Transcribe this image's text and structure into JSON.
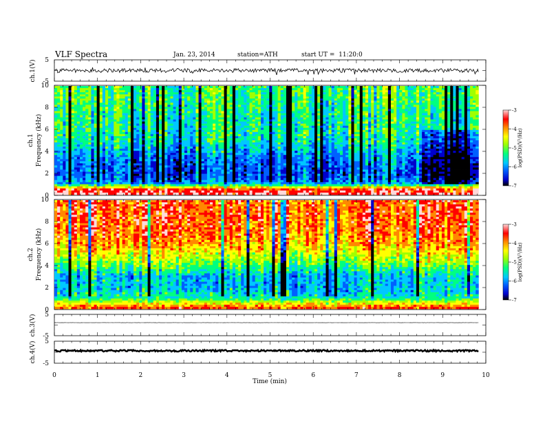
{
  "header": {
    "title": "VLF Spectra",
    "date": "Jan. 23, 2014",
    "station": "station=ATH",
    "start": "start UT =  11:20:0"
  },
  "colorbar": {
    "label": "log(PSD)(V²/Hz)",
    "ticks": [
      "-3",
      "-4",
      "-5",
      "-6",
      "-7"
    ],
    "range": [
      -7,
      -3
    ],
    "colors": [
      "#000000",
      "#0000cc",
      "#0060ff",
      "#00c8ff",
      "#00ff80",
      "#a0ff00",
      "#ffff00",
      "#ff8800",
      "#ff0000",
      "#ffd8d8"
    ]
  },
  "chart_data": [
    {
      "type": "line",
      "panel": "ch1-waveform",
      "ylabel": "ch.1(V)",
      "ylim": [
        -5,
        5
      ],
      "yticks": [
        "5",
        "-5"
      ],
      "xlim": [
        0,
        10
      ],
      "baseline": 0,
      "noise_amplitude": 1
    },
    {
      "type": "heatmap",
      "panel": "ch1-spectrogram",
      "title": "ch.1",
      "ylabel": "Frequency (kHz)",
      "ylim": [
        0,
        10
      ],
      "yticks": [
        "0",
        "2",
        "4",
        "6",
        "8",
        "10"
      ],
      "xlim": [
        0,
        9.83
      ],
      "zlim": [
        -7,
        -3
      ],
      "freq_kHz": [
        0,
        0.5,
        1,
        1.5,
        2,
        3,
        4,
        5,
        6,
        7,
        8,
        9,
        10
      ],
      "mean_log_psd": [
        -3.3,
        -3.6,
        -5.7,
        -6.0,
        -6.1,
        -6.0,
        -5.7,
        -5.4,
        -5.3,
        -5.3,
        -5.2,
        -5.1,
        -5.1
      ]
    },
    {
      "type": "heatmap",
      "panel": "ch2-spectrogram",
      "title": "ch.2",
      "ylabel": "Frequency (kHz)",
      "ylim": [
        0,
        10
      ],
      "yticks": [
        "0",
        "2",
        "4",
        "6",
        "8",
        "10"
      ],
      "xlim": [
        0,
        9.83
      ],
      "zlim": [
        -7,
        -3
      ],
      "freq_kHz": [
        0,
        0.5,
        1,
        1.5,
        2,
        3,
        4,
        5,
        6,
        7,
        8,
        9,
        10
      ],
      "mean_log_psd": [
        -3.6,
        -4.4,
        -5.3,
        -5.5,
        -5.6,
        -5.6,
        -5.0,
        -4.5,
        -4.1,
        -3.9,
        -3.8,
        -3.8,
        -3.8
      ]
    },
    {
      "type": "line",
      "panel": "ch3-waveform",
      "ylabel": "ch.3(V)",
      "ylim": [
        -5,
        5
      ],
      "yticks": [
        "5",
        "-5"
      ],
      "xlim": [
        0,
        10
      ],
      "baseline": 1.2,
      "noise_amplitude": 0.05
    },
    {
      "type": "line",
      "panel": "ch4-waveform",
      "ylabel": "ch.4(V)",
      "ylim": [
        -5,
        5
      ],
      "yticks": [
        "5",
        "-5"
      ],
      "xlim": [
        0,
        10
      ],
      "baseline": 0.7,
      "noise_amplitude": 0.4,
      "xlabel": "Time (min)",
      "xticks": [
        "0",
        "1",
        "2",
        "3",
        "4",
        "5",
        "6",
        "7",
        "8",
        "9",
        "10"
      ]
    }
  ]
}
